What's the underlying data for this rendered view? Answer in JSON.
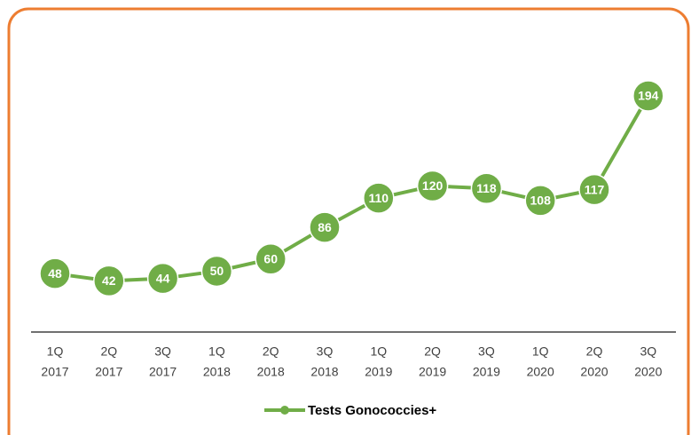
{
  "chart_data": {
    "type": "line",
    "categories": [
      [
        "1Q",
        "2017"
      ],
      [
        "2Q",
        "2017"
      ],
      [
        "3Q",
        "2017"
      ],
      [
        "1Q",
        "2018"
      ],
      [
        "2Q",
        "2018"
      ],
      [
        "3Q",
        "2018"
      ],
      [
        "1Q",
        "2019"
      ],
      [
        "2Q",
        "2019"
      ],
      [
        "3Q",
        "2019"
      ],
      [
        "1Q",
        "2020"
      ],
      [
        "2Q",
        "2020"
      ],
      [
        "3Q",
        "2020"
      ]
    ],
    "series": [
      {
        "name": "Tests Gonococcies+",
        "color": "#70ad47",
        "values": [
          48,
          42,
          44,
          50,
          60,
          86,
          110,
          120,
          118,
          108,
          117,
          194
        ]
      }
    ],
    "legend": "bottom"
  }
}
